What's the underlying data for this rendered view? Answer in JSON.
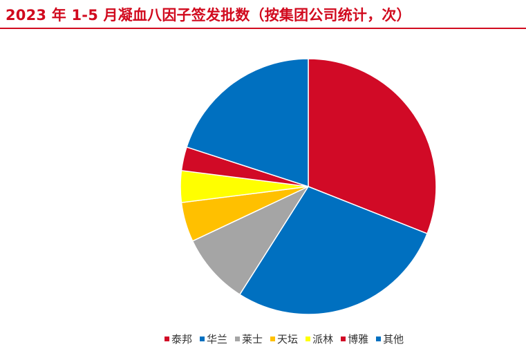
{
  "title": "2023 年 1-5 月凝血八因子签发批数（按集团公司统计，次）",
  "chart_data": {
    "type": "pie",
    "title": "2023 年 1-5 月凝血八因子签发批数（按集团公司统计，次）",
    "slices": [
      {
        "name": "泰邦",
        "value": 31,
        "color": "#d10a26"
      },
      {
        "name": "华兰",
        "value": 28,
        "color": "#0070c0"
      },
      {
        "name": "莱士",
        "value": 9,
        "color": "#a5a5a5"
      },
      {
        "name": "天坛",
        "value": 5,
        "color": "#ffc000"
      },
      {
        "name": "派林",
        "value": 4,
        "color": "#ffff00"
      },
      {
        "name": "博雅",
        "value": 3,
        "color": "#d10a26"
      },
      {
        "name": "其他",
        "value": 20,
        "color": "#0070c0"
      }
    ],
    "legend_position": "bottom",
    "start_angle": "12 o'clock",
    "direction": "clockwise"
  }
}
